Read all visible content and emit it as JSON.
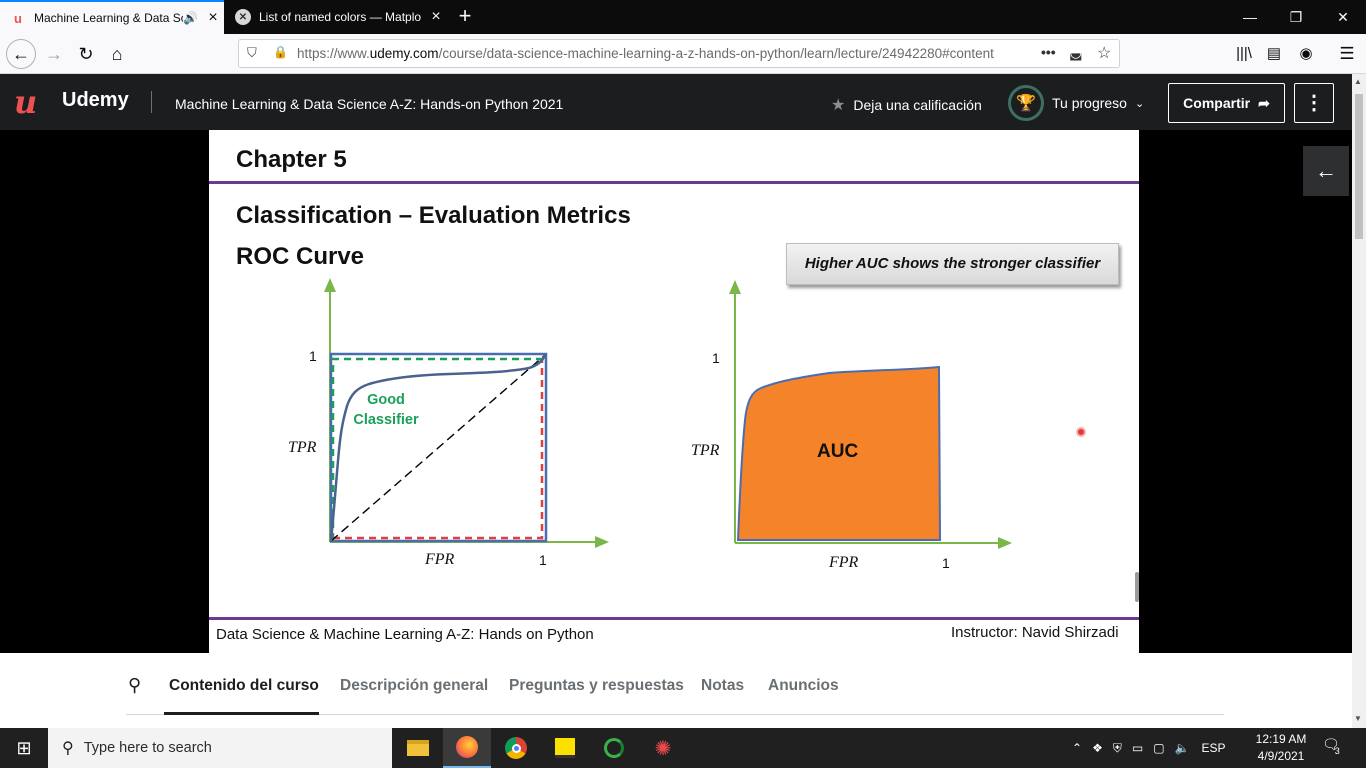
{
  "browser": {
    "tabs": [
      {
        "title": "Machine Learning & Data Sci",
        "favicon": "udemy-icon"
      },
      {
        "title": "List of named colors — Matplo",
        "favicon": "matplotlib-icon"
      }
    ],
    "url_prefix": "https://www.",
    "url_domain": "udemy.com",
    "url_path": "/course/data-science-machine-learning-a-z-hands-on-python/learn/lecture/24942280#content"
  },
  "udemy": {
    "logo": "Udemy",
    "course_title": "Machine Learning & Data Science A-Z: Hands-on Python 2021",
    "rate_label": "Deja una calificación",
    "progress_label": "Tu progreso",
    "share_label": "Compartir"
  },
  "slide": {
    "chapter": "Chapter 5",
    "heading": "Classification – Evaluation Metrics",
    "subheading": "ROC Curve",
    "callout": "Higher AUC shows the stronger classifier",
    "left_plot": {
      "one_y": "1",
      "one_x": "1",
      "ylabel": "TPR",
      "xlabel": "FPR",
      "note_line1": "Good",
      "note_line2": "Classifier"
    },
    "right_plot": {
      "one_y": "1",
      "one_x": "1",
      "ylabel": "TPR",
      "xlabel": "FPR",
      "area_label": "AUC"
    },
    "footer_left": "Data Science & Machine Learning A-Z: Hands on Python",
    "footer_right": "Instructor: Navid Shirzadi",
    "colors": {
      "rule": "#6b3a8e",
      "auc_fill": "#f5832a",
      "axis": "#7ab648",
      "curve": "#4a6290",
      "good": "#1ba05a",
      "random_line": "#000000",
      "box_green": "#1ba05a",
      "box_red": "#e0403a"
    }
  },
  "course_tabs": [
    "Contenido del curso",
    "Descripción general",
    "Preguntas y respuestas",
    "Notas",
    "Anuncios"
  ],
  "taskbar": {
    "search_placeholder": "Type here to search",
    "lang": "ESP",
    "time": "12:19 AM",
    "date": "4/9/2021",
    "notifications": "3"
  }
}
